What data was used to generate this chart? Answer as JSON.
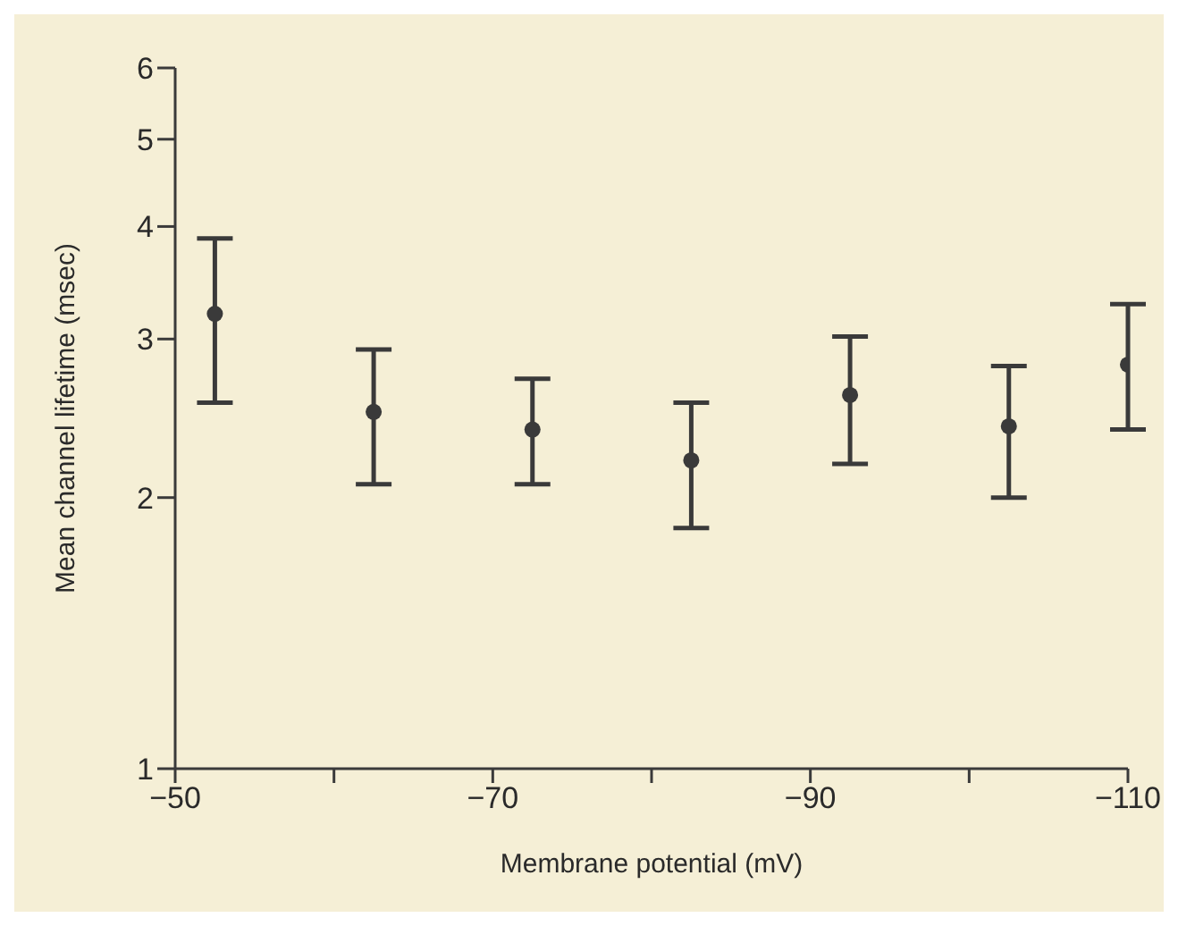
{
  "chart_data": {
    "type": "scatter",
    "xlabel": "Membrane potential (mV)",
    "ylabel": "Mean channel lifetime (msec)",
    "x": [
      -52.5,
      -62.5,
      -72.5,
      -82.5,
      -92.5,
      -102.5,
      -110
    ],
    "series": [
      {
        "color": "#3a3a3a",
        "values": [
          3.2,
          2.49,
          2.38,
          2.2,
          2.6,
          2.4,
          2.81
        ],
        "errors": [
          [
            2.55,
            3.88
          ],
          [
            2.07,
            2.92
          ],
          [
            2.07,
            2.71
          ],
          [
            1.85,
            2.55
          ],
          [
            2.18,
            3.02
          ],
          [
            2.0,
            2.8
          ],
          [
            2.38,
            3.28
          ]
        ]
      }
    ],
    "xlim": [
      -50,
      -110
    ],
    "xticks": [
      -50,
      {
        "value": -60,
        "label": null
      },
      -70,
      {
        "value": -80,
        "label": null
      },
      -90,
      {
        "value": -100,
        "label": null
      },
      -110
    ],
    "ylim": [
      1,
      6
    ],
    "yticks": [
      1,
      2,
      3,
      4,
      5,
      6
    ],
    "log": true,
    "marker": "circle",
    "grid": false,
    "legend": false
  }
}
